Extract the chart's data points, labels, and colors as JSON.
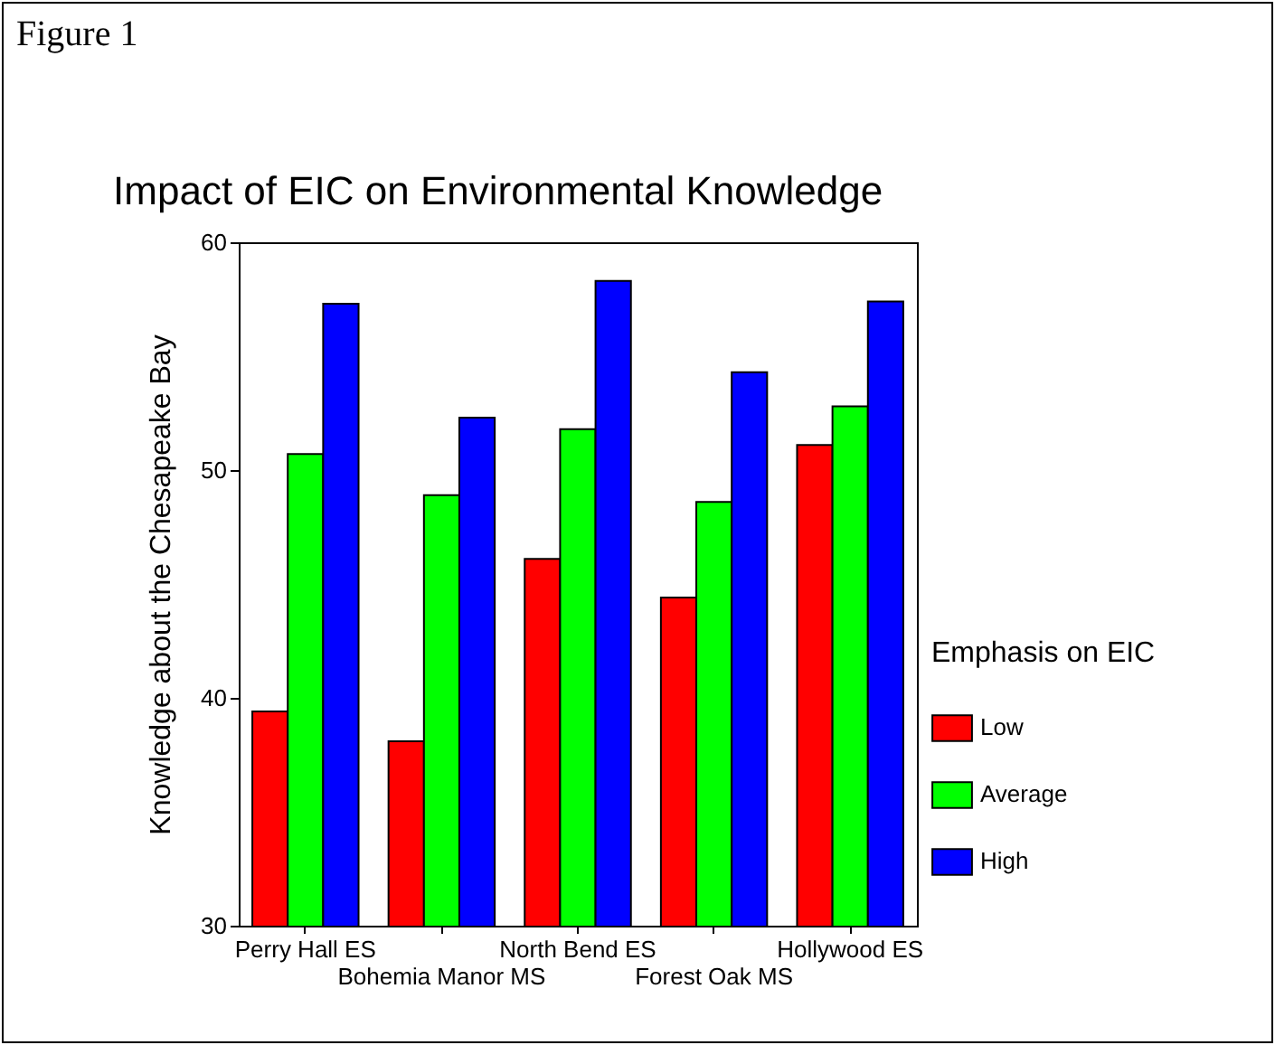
{
  "chart_data": {
    "type": "bar",
    "title": "Impact of EIC on Environmental Knowledge",
    "ylabel": "Knowledge about the Chesapeake Bay",
    "legend_title": "Emphasis on EIC",
    "annotations": [
      "Figure 1"
    ],
    "categories": [
      "Perry Hall ES",
      "Bohemia Manor MS",
      "North Bend ES",
      "Forest Oak MS",
      "Hollywood ES"
    ],
    "series": [
      {
        "name": "Low",
        "color": "#ff0000",
        "values": [
          39.4,
          38.1,
          46.1,
          44.4,
          51.1
        ]
      },
      {
        "name": "Average",
        "color": "#00ff00",
        "values": [
          50.7,
          48.9,
          51.8,
          48.6,
          52.8
        ]
      },
      {
        "name": "High",
        "color": "#0000ff",
        "values": [
          57.3,
          52.3,
          58.3,
          54.3,
          57.4
        ]
      }
    ],
    "ylim": [
      30,
      60
    ],
    "yticks": [
      30,
      40,
      50,
      60
    ],
    "grid": false,
    "legend": "right"
  }
}
